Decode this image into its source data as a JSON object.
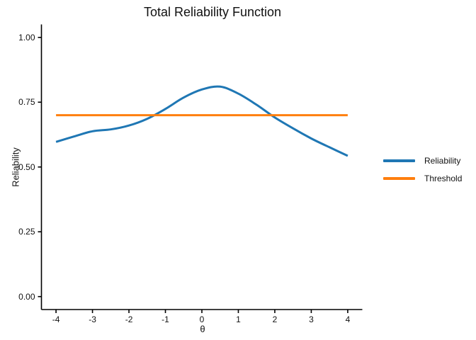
{
  "chart_data": {
    "type": "line",
    "title": "Total Reliability Function",
    "xlabel": "θ",
    "ylabel": "Reliability",
    "xlim": [
      -4,
      4
    ],
    "ylim": [
      0,
      1
    ],
    "x_ticks": [
      -4,
      -3,
      -2,
      -1,
      0,
      1,
      2,
      3,
      4
    ],
    "y_ticks": [
      "0.00",
      "0.25",
      "0.50",
      "0.75",
      "1.00"
    ],
    "grid": false,
    "legend_position": "right",
    "axis_color": "#000000",
    "background": "#ffffff",
    "series": [
      {
        "name": "Reliability",
        "style": "smooth",
        "color": "#1f77b4",
        "stroke_width": 3,
        "x": [
          -4,
          -3.5,
          -3,
          -2.5,
          -2,
          -1.5,
          -1,
          -0.5,
          0,
          0.5,
          1,
          1.5,
          2,
          2.5,
          3,
          3.5,
          4
        ],
        "y": [
          0.597,
          0.618,
          0.638,
          0.645,
          0.66,
          0.686,
          0.724,
          0.768,
          0.799,
          0.81,
          0.783,
          0.74,
          0.691,
          0.649,
          0.61,
          0.576,
          0.543
        ]
      },
      {
        "name": "Threshold",
        "style": "straight",
        "color": "#ff7f0e",
        "stroke_width": 3,
        "x": [
          -4,
          4
        ],
        "y": [
          0.7,
          0.7
        ]
      }
    ]
  }
}
